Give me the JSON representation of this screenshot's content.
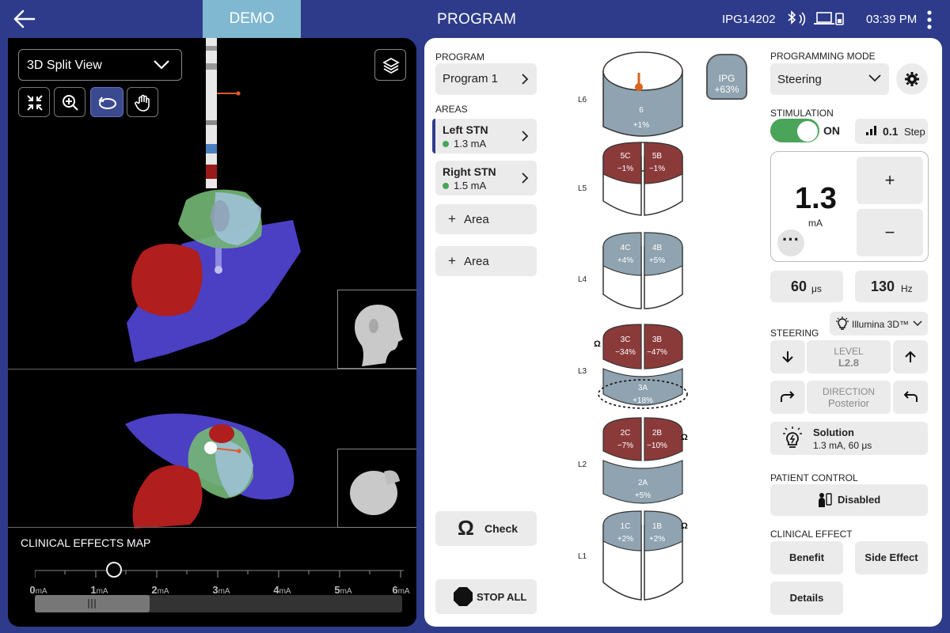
{
  "header": {
    "mode_badge": "DEMO",
    "title": "PROGRAM",
    "device_id": "IPG14202",
    "time": "03:39 PM"
  },
  "left": {
    "view_select": "3D Split View",
    "clinical_effects_map": "CLINICAL EFFECTS MAP",
    "scale_ticks": [
      {
        "v": "0",
        "u": "mA"
      },
      {
        "v": "1",
        "u": "mA"
      },
      {
        "v": "2",
        "u": "mA"
      },
      {
        "v": "3",
        "u": "mA"
      },
      {
        "v": "4",
        "u": "mA"
      },
      {
        "v": "5",
        "u": "mA"
      },
      {
        "v": "6",
        "u": "mA"
      }
    ],
    "slider_value_ma": 1.3
  },
  "program": {
    "label": "PROGRAM",
    "name": "Program 1",
    "areas_label": "AREAS",
    "areas": [
      {
        "name": "Left STN",
        "amp": "1.3 mA"
      },
      {
        "name": "Right STN",
        "amp": "1.5 mA"
      }
    ],
    "add_area": "Area",
    "check": "Check",
    "stop_all": "STOP ALL"
  },
  "lead": {
    "ipg_label": "IPG",
    "ipg_value": "+63%",
    "levels": [
      "L6",
      "L5",
      "L4",
      "L3",
      "L2",
      "L1"
    ],
    "contacts": {
      "c6": {
        "id": "6",
        "val": "+1%"
      },
      "c5C": {
        "id": "5C",
        "val": "−1%"
      },
      "c5B": {
        "id": "5B",
        "val": "−1%"
      },
      "c4C": {
        "id": "4C",
        "val": "+4%"
      },
      "c4B": {
        "id": "4B",
        "val": "+5%"
      },
      "c3C": {
        "id": "3C",
        "val": "−34%"
      },
      "c3B": {
        "id": "3B",
        "val": "−47%"
      },
      "c3A": {
        "id": "3A",
        "val": "+18%"
      },
      "c2C": {
        "id": "2C",
        "val": "−7%"
      },
      "c2B": {
        "id": "2B",
        "val": "−10%"
      },
      "c2A": {
        "id": "2A",
        "val": "+5%"
      },
      "c1C": {
        "id": "1C",
        "val": "+2%"
      },
      "c1B": {
        "id": "1B",
        "val": "+2%"
      }
    }
  },
  "controls": {
    "programming_mode_label": "PROGRAMMING MODE",
    "programming_mode": "Steering",
    "stimulation_label": "STIMULATION",
    "stimulation_state": "ON",
    "step_value": "0.1",
    "step_label": "Step",
    "amplitude": "1.3",
    "amplitude_unit": "mA",
    "plus": "+",
    "minus": "−",
    "pulse_width": "60",
    "pulse_width_unit": "μs",
    "frequency": "130",
    "frequency_unit": "Hz",
    "illumina": "Illumina 3D™",
    "steering_label": "STEERING",
    "level_label": "LEVEL",
    "level_value": "L2.8",
    "direction_label": "DIRECTION",
    "direction_value": "Posterior",
    "solution_label": "Solution",
    "solution_value": "1.3 mA, 60 μs",
    "patient_control_label": "PATIENT CONTROL",
    "patient_control_value": "Disabled",
    "clinical_effect_label": "CLINICAL EFFECT",
    "benefit": "Benefit",
    "side_effect": "Side Effect",
    "details": "Details"
  },
  "colors": {
    "header_bg": "#2d3b8a",
    "demo_badge": "#7fb8d0",
    "contact_positive": "#8fa3b0",
    "contact_negative": "#8b3a3a",
    "toggle_on": "#4aa55a"
  }
}
